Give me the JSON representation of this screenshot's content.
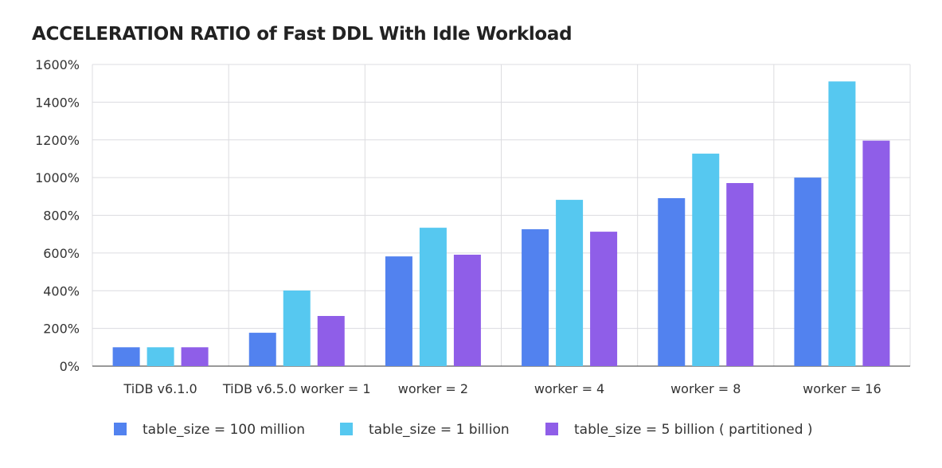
{
  "chart_data": {
    "type": "bar",
    "title": "ACCELERATION RATIO of Fast DDL With Idle Workload",
    "xlabel": "",
    "ylabel": "",
    "ylim": [
      0,
      1600
    ],
    "yticks": [
      "0%",
      "200%",
      "400%",
      "600%",
      "800%",
      "1000%",
      "1200%",
      "1400%",
      "1600%"
    ],
    "grid": true,
    "legend_position": "bottom",
    "categories": [
      "TiDB v6.1.0",
      "TiDB v6.5.0 worker = 1",
      "worker = 2",
      "worker = 4",
      "worker = 8",
      "worker = 16"
    ],
    "series": [
      {
        "name": "table_size = 100 million",
        "color": "#5282ef",
        "values": [
          100,
          177,
          582,
          726,
          891,
          1000
        ]
      },
      {
        "name": "table_size = 1 billion",
        "color": "#56c8f0",
        "values": [
          100,
          401,
          734,
          882,
          1127,
          1510
        ]
      },
      {
        "name": "table_size = 5 billion ( partitioned )",
        "color": "#8f5ee8",
        "values": [
          100,
          266,
          591,
          713,
          971,
          1196
        ]
      }
    ]
  }
}
